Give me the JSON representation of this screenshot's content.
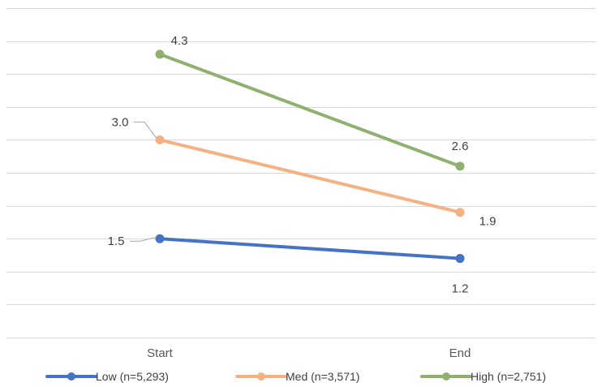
{
  "chart_data": {
    "type": "line",
    "categories": [
      "Start",
      "End"
    ],
    "ylim": [
      0,
      5
    ],
    "grid": true,
    "legend_position": "bottom",
    "series": [
      {
        "name": "Low (n=5,293)",
        "values": [
          1.5,
          1.2
        ],
        "labels": [
          "1.5",
          "1.2"
        ],
        "color": "#4472C4"
      },
      {
        "name": "Med (n=3,571)",
        "values": [
          3.0,
          1.9
        ],
        "labels": [
          "3.0",
          "1.9"
        ],
        "color": "#F4B183"
      },
      {
        "name": "High (n=2,751)",
        "values": [
          4.3,
          2.6
        ],
        "labels": [
          "4.3",
          "2.6"
        ],
        "color": "#8FB06F"
      }
    ]
  }
}
